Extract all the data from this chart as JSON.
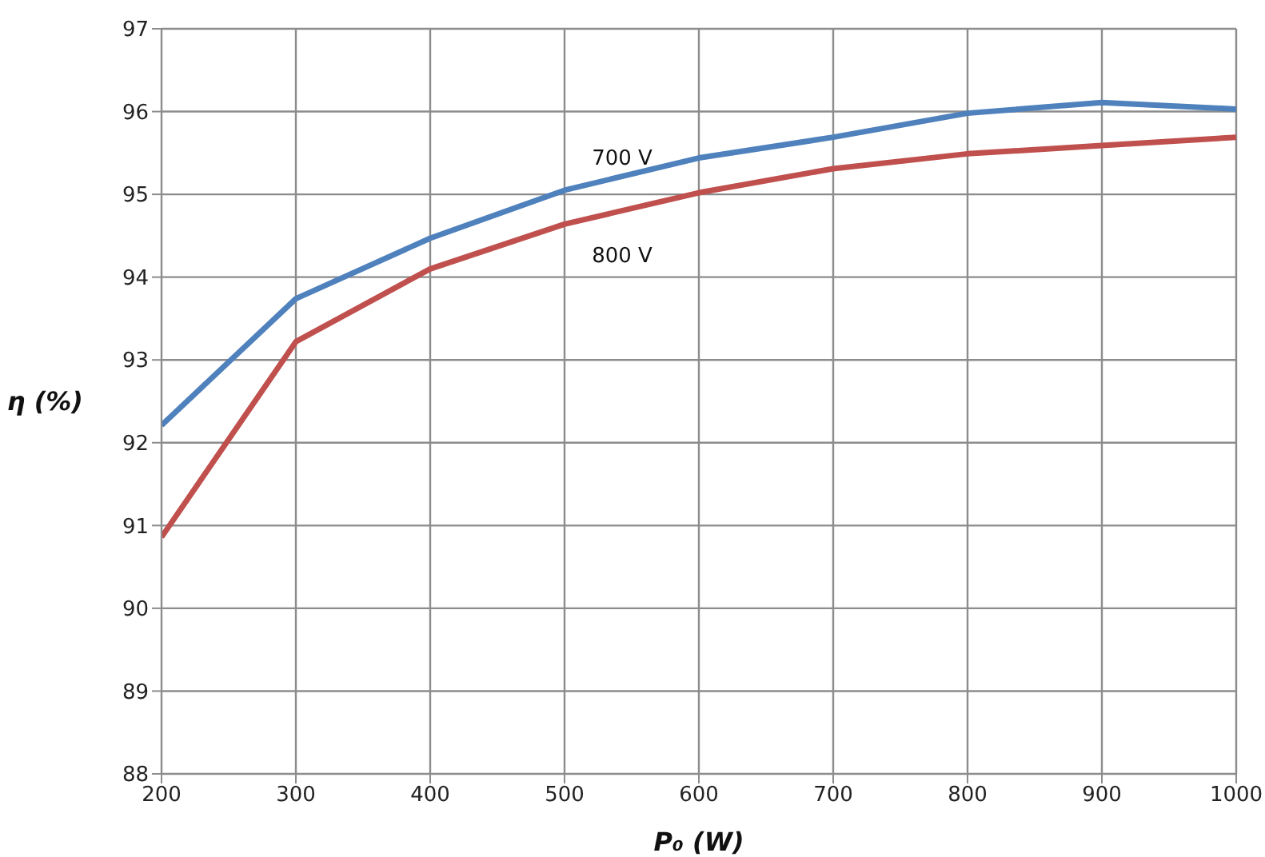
{
  "chart_data": {
    "type": "line",
    "xlabel": "P₀ (W)",
    "ylabel": "η (%)",
    "x": [
      200,
      300,
      400,
      500,
      600,
      700,
      800,
      900,
      1000
    ],
    "series": [
      {
        "name": "700 V",
        "color": "#4f81bd",
        "values": [
          92.21,
          93.74,
          94.47,
          95.05,
          95.44,
          95.69,
          95.98,
          96.11,
          96.03
        ]
      },
      {
        "name": "800 V",
        "color": "#c0504d",
        "values": [
          90.86,
          93.22,
          94.1,
          94.64,
          95.02,
          95.31,
          95.49,
          95.59,
          95.69
        ]
      }
    ],
    "xlim": [
      200,
      1000
    ],
    "xticks": [
      200,
      300,
      400,
      500,
      600,
      700,
      800,
      900,
      1000
    ],
    "ylim": [
      88,
      97
    ],
    "yticks": [
      88,
      89,
      90,
      91,
      92,
      93,
      94,
      95,
      96,
      97
    ],
    "grid": true,
    "marker": "none",
    "line_style": "solid"
  }
}
